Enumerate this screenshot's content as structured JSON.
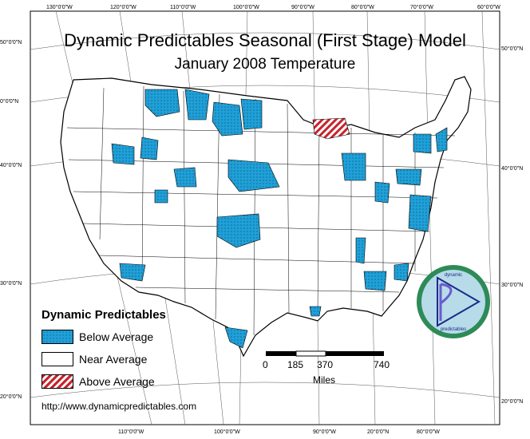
{
  "title": "Dynamic Predictables Seasonal (First Stage) Model",
  "subtitle": "January 2008 Temperature",
  "longitude_ticks_top": [
    "130°0'0\"W",
    "120°0'0\"W",
    "110°0'0\"W",
    "100°0'0\"W",
    "90°0'0\"W",
    "80°0'0\"W",
    "70°0'0\"W",
    "60°0'0\"W"
  ],
  "longitude_ticks_bottom": [
    "110°0'0\"W",
    "100°0'0\"W",
    "90°0'0\"W",
    "20°0'0\"N",
    "80°0'0\"W"
  ],
  "latitude_ticks_left": [
    "50°0'0\"N",
    "40°0'0\"N",
    "30°0'0\"N",
    "20°0'0\"N"
  ],
  "latitude_ticks_left_partial": "0°0'0\"N",
  "latitude_ticks_right": [
    "50°0'0\"N",
    "40°0'0\"N",
    "30°0'0\"N",
    "20°0'0\"N"
  ],
  "legend": {
    "title": "Dynamic Predictables",
    "items": [
      {
        "label": "Below Average",
        "color": "#1fa0d8"
      },
      {
        "label": "Near Average",
        "color": "#ffffff"
      },
      {
        "label": "Above Average",
        "color": "#c8232c"
      }
    ]
  },
  "scale_bar": {
    "ticks": [
      "0",
      "185",
      "370",
      "740"
    ],
    "unit": "Miles"
  },
  "url": "http://www.dynamicpredictables.com",
  "logo": {
    "text_top": "dynamic",
    "text_bottom": "predictables",
    "ring_color": "#2e8b57",
    "fill_color": "#b7dbe8",
    "mark_color": "#6a5acd"
  }
}
